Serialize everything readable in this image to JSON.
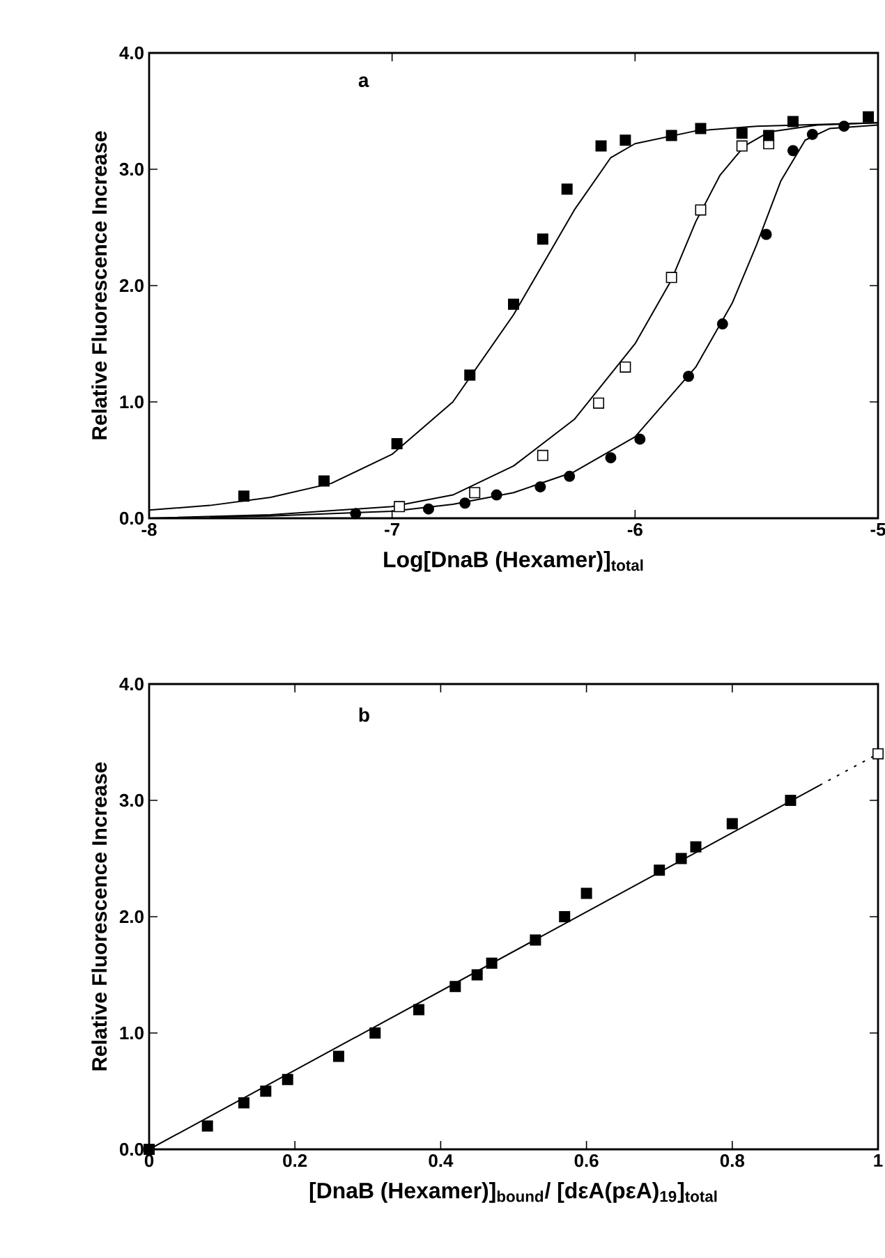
{
  "chart_data": [
    {
      "type": "scatter",
      "xlabel": "Log[DnaB (Hexamer)]$_{total}$",
      "ylabel": "Relative Fluorescence Increase",
      "annotations": [
        "a"
      ],
      "xlim": [
        -8,
        -5
      ],
      "ylim": [
        0,
        4
      ],
      "xticks": [
        -8,
        -7,
        -6,
        -5
      ],
      "yticks": [
        {
          "value": 0,
          "label": "0.0"
        },
        {
          "value": 1,
          "label": "1.0"
        },
        {
          "value": 2,
          "label": "2.0"
        },
        {
          "value": 3,
          "label": "3.0"
        },
        {
          "value": 4,
          "label": "4.0"
        }
      ],
      "series": [
        {
          "type": "line",
          "marker": "none",
          "color": "#000000",
          "x": [
            -8,
            -7.75,
            -7.5,
            -7.25,
            -7.0,
            -6.75,
            -6.5,
            -6.25,
            -6.1,
            -6.0,
            -5.75,
            -5.5,
            -5.0
          ],
          "values": [
            0.07,
            0.11,
            0.18,
            0.3,
            0.55,
            1.0,
            1.75,
            2.65,
            3.1,
            3.22,
            3.33,
            3.37,
            3.4
          ]
        },
        {
          "type": "line",
          "marker": "none",
          "color": "#000000",
          "x": [
            -8,
            -7.5,
            -7,
            -6.75,
            -6.5,
            -6.25,
            -6,
            -5.85,
            -5.75,
            -5.65,
            -5.55,
            -5.45,
            -5.25,
            -5
          ],
          "values": [
            0.0,
            0.03,
            0.1,
            0.2,
            0.45,
            0.85,
            1.5,
            2.05,
            2.55,
            2.95,
            3.2,
            3.32,
            3.38,
            3.4
          ]
        },
        {
          "type": "line",
          "marker": "none",
          "color": "#000000",
          "x": [
            -7.75,
            -7.5,
            -7,
            -6.75,
            -6.5,
            -6.25,
            -6,
            -5.75,
            -5.6,
            -5.5,
            -5.4,
            -5.3,
            -5.2,
            -5
          ],
          "values": [
            0.01,
            0.02,
            0.06,
            0.12,
            0.22,
            0.4,
            0.7,
            1.3,
            1.85,
            2.35,
            2.9,
            3.25,
            3.35,
            3.38
          ]
        },
        {
          "marker": "circle",
          "color": "#000000",
          "x": [
            -7.15,
            -6.85,
            -6.7,
            -6.57,
            -6.39,
            -6.27,
            -6.1,
            -5.98,
            -5.78,
            -5.64,
            -5.46,
            -5.35,
            -5.27,
            -5.14
          ],
          "values": [
            0.04,
            0.08,
            0.13,
            0.2,
            0.27,
            0.36,
            0.52,
            0.68,
            1.22,
            1.67,
            2.44,
            3.16,
            3.3,
            3.37
          ]
        },
        {
          "marker": "square",
          "color": "#ffffff",
          "x": [
            -6.97,
            -6.66,
            -6.38,
            -6.15,
            -6.04,
            -5.85,
            -5.73,
            -5.56,
            -5.45
          ],
          "values": [
            0.1,
            0.22,
            0.54,
            0.99,
            1.3,
            2.07,
            2.65,
            3.2,
            3.22
          ]
        },
        {
          "marker": "square",
          "color": "#000000",
          "x": [
            -7.61,
            -7.28,
            -6.98,
            -6.68,
            -6.5,
            -6.38,
            -6.28,
            -6.14,
            -6.04,
            -5.85,
            -5.73,
            -5.56,
            -5.45,
            -5.35,
            -5.04
          ],
          "values": [
            0.19,
            0.32,
            0.64,
            1.23,
            1.84,
            2.4,
            2.83,
            3.2,
            3.25,
            3.29,
            3.35,
            3.31,
            3.29,
            3.41,
            3.45
          ]
        }
      ]
    },
    {
      "type": "scatter",
      "xlabel": "[DnaB (Hexamer)]$_{bound}$/ [dεA(pεA)$_{19}$]$_{total}$",
      "ylabel": "Relative Fluorescence Increase",
      "annotations": [
        "b"
      ],
      "xlim": [
        0,
        1
      ],
      "ylim": [
        0,
        4
      ],
      "xticks": [
        0,
        0.2,
        0.4,
        0.6,
        0.8,
        1
      ],
      "yticks": [
        {
          "value": 0,
          "label": "0.0"
        },
        {
          "value": 1,
          "label": "1.0"
        },
        {
          "value": 2,
          "label": "2.0"
        },
        {
          "value": 3,
          "label": "3.0"
        },
        {
          "value": 4,
          "label": "4.0"
        }
      ],
      "series": [
        {
          "type": "line",
          "marker": "none",
          "color": "#000000",
          "x": [
            0,
            0.92
          ],
          "values": [
            0,
            3.13
          ]
        },
        {
          "type": "line",
          "marker": "none",
          "line_style": "dashed",
          "color": "#000000",
          "x": [
            0.92,
            1.0
          ],
          "values": [
            3.13,
            3.4
          ]
        },
        {
          "marker": "square",
          "color": "#000000",
          "x": [
            0,
            0.08,
            0.13,
            0.16,
            0.19,
            0.26,
            0.31,
            0.37,
            0.42,
            0.45,
            0.47,
            0.53,
            0.57,
            0.6,
            0.7,
            0.73,
            0.75,
            0.8,
            0.88
          ],
          "values": [
            0,
            0.2,
            0.4,
            0.5,
            0.6,
            0.8,
            1.0,
            1.2,
            1.4,
            1.5,
            1.6,
            1.8,
            2.0,
            2.2,
            2.4,
            2.5,
            2.6,
            2.8,
            3.0
          ]
        },
        {
          "marker": "square",
          "color": "#ffffff",
          "x": [
            1.0
          ],
          "values": [
            3.4
          ]
        }
      ]
    }
  ]
}
